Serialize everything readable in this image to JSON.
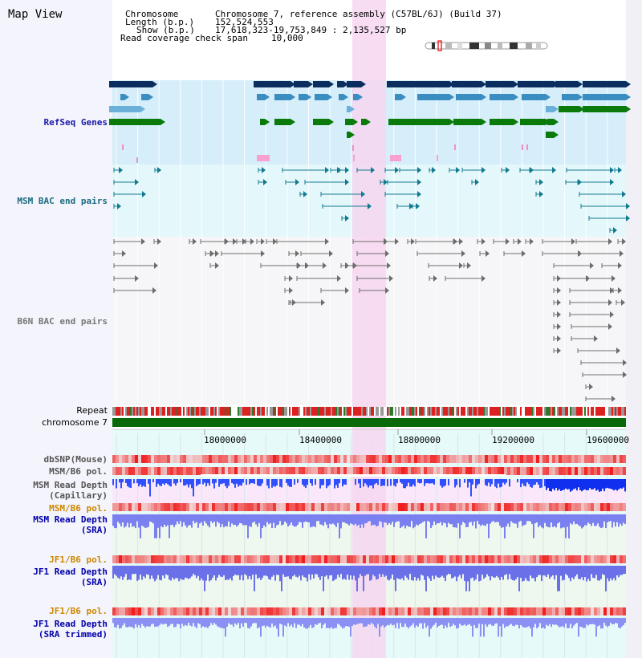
{
  "view_title": "Map View",
  "info": {
    "chromosome_key": "Chromosome",
    "chromosome_val": "Chromosome 7, reference assembly (C57BL/6J) (Build 37)",
    "length_key": "Length (b.p.)",
    "length_val": "152,524,553",
    "show_key": "Show (b.p.)",
    "show_val": "17,618,323-19,753,849 : 2,135,527 bp",
    "coverage_key": "Read coverage check span",
    "coverage_val": "10,000"
  },
  "tracks": {
    "refseq": "RefSeq Genes",
    "msm_bac": "MSM BAC end pairs",
    "b6n_bac": "B6N BAC end pairs",
    "repeat": "Repeat",
    "chromosome": "chromosome 7",
    "dbsnp": "dbSNP(Mouse)",
    "msm_b6_pol_1": "MSM/B6 pol.",
    "msm_read_depth_cap_1": "MSM Read Depth",
    "msm_read_depth_cap_2": "(Capillary)",
    "msm_b6_pol_2": "MSM/B6 pol.",
    "msm_read_depth_sra_1": "MSM Read Depth",
    "msm_read_depth_sra_2": "(SRA)",
    "jf1_b6_pol_1": "JF1/B6 pol.",
    "jf1_read_depth_sra_1": "JF1 Read Depth",
    "jf1_read_depth_sra_2": "(SRA)",
    "jf1_b6_pol_2": "JF1/B6 pol.",
    "jf1_read_depth_trim_1": "JF1 Read Depth",
    "jf1_read_depth_trim_2": "(SRA trimmed)"
  },
  "axis": {
    "ticks": [
      "18000000",
      "18400000",
      "18800000",
      "19200000",
      "19600000"
    ]
  },
  "colors": {
    "refseq_label": "#1a1aa6",
    "msm_bac_label": "#1a6a80",
    "b6n_bac_label": "#777777",
    "pol_label": "#cc8800",
    "depth_label": "#0000aa",
    "highlight": "#f6d6f0",
    "refseq_bg": "#d6eefa",
    "msm_bg": "#e4f8fb"
  }
}
